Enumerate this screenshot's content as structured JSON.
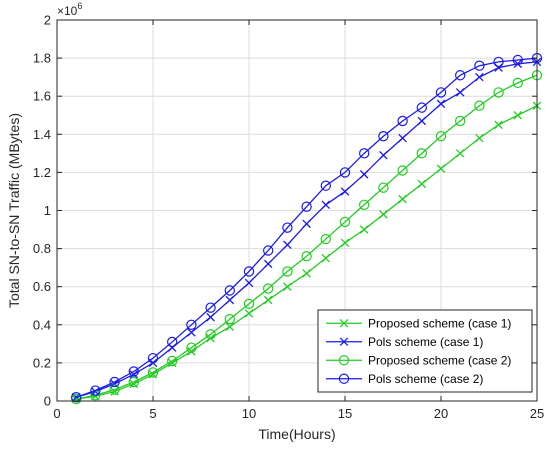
{
  "chart_data": {
    "type": "line",
    "title": "",
    "xlabel": "Time(Hours)",
    "ylabel": "Total SN-to-SN Traffic (MBytes)",
    "y_exponent_label": "×10",
    "y_exponent_power": "6",
    "xlim": [
      0,
      25
    ],
    "ylim": [
      0,
      2
    ],
    "grid": true,
    "legend_position": "bottom-right",
    "x_ticks": [
      0,
      5,
      10,
      15,
      20,
      25
    ],
    "y_ticks": [
      0,
      0.2,
      0.4,
      0.6,
      0.8,
      1,
      1.2,
      1.4,
      1.6,
      1.8,
      2
    ],
    "x": [
      1,
      2,
      3,
      4,
      5,
      6,
      7,
      8,
      9,
      10,
      11,
      12,
      13,
      14,
      15,
      16,
      17,
      18,
      19,
      20,
      21,
      22,
      23,
      24,
      25
    ],
    "series": [
      {
        "name": "Proposed scheme (case 1)",
        "color": "#22cc22",
        "marker": "x",
        "values": [
          0.01,
          0.025,
          0.05,
          0.09,
          0.14,
          0.2,
          0.26,
          0.33,
          0.39,
          0.46,
          0.53,
          0.6,
          0.67,
          0.75,
          0.83,
          0.9,
          0.98,
          1.06,
          1.14,
          1.22,
          1.3,
          1.38,
          1.45,
          1.5,
          1.55
        ]
      },
      {
        "name": "Pols scheme (case 1)",
        "color": "#1a1aee",
        "marker": "x",
        "values": [
          0.02,
          0.05,
          0.09,
          0.14,
          0.2,
          0.28,
          0.36,
          0.44,
          0.53,
          0.62,
          0.72,
          0.82,
          0.93,
          1.03,
          1.1,
          1.19,
          1.29,
          1.38,
          1.47,
          1.56,
          1.62,
          1.7,
          1.75,
          1.77,
          1.78
        ]
      },
      {
        "name": "Proposed scheme (case 2)",
        "color": "#22cc22",
        "marker": "o",
        "values": [
          0.01,
          0.03,
          0.06,
          0.1,
          0.15,
          0.21,
          0.28,
          0.35,
          0.43,
          0.51,
          0.59,
          0.68,
          0.76,
          0.85,
          0.94,
          1.03,
          1.12,
          1.21,
          1.3,
          1.39,
          1.47,
          1.55,
          1.62,
          1.67,
          1.71
        ]
      },
      {
        "name": "Pols scheme (case 2)",
        "color": "#1a1aee",
        "marker": "o",
        "values": [
          0.02,
          0.055,
          0.1,
          0.155,
          0.225,
          0.31,
          0.4,
          0.49,
          0.58,
          0.68,
          0.79,
          0.91,
          1.02,
          1.13,
          1.2,
          1.3,
          1.39,
          1.47,
          1.54,
          1.62,
          1.71,
          1.76,
          1.78,
          1.79,
          1.8
        ]
      }
    ]
  }
}
